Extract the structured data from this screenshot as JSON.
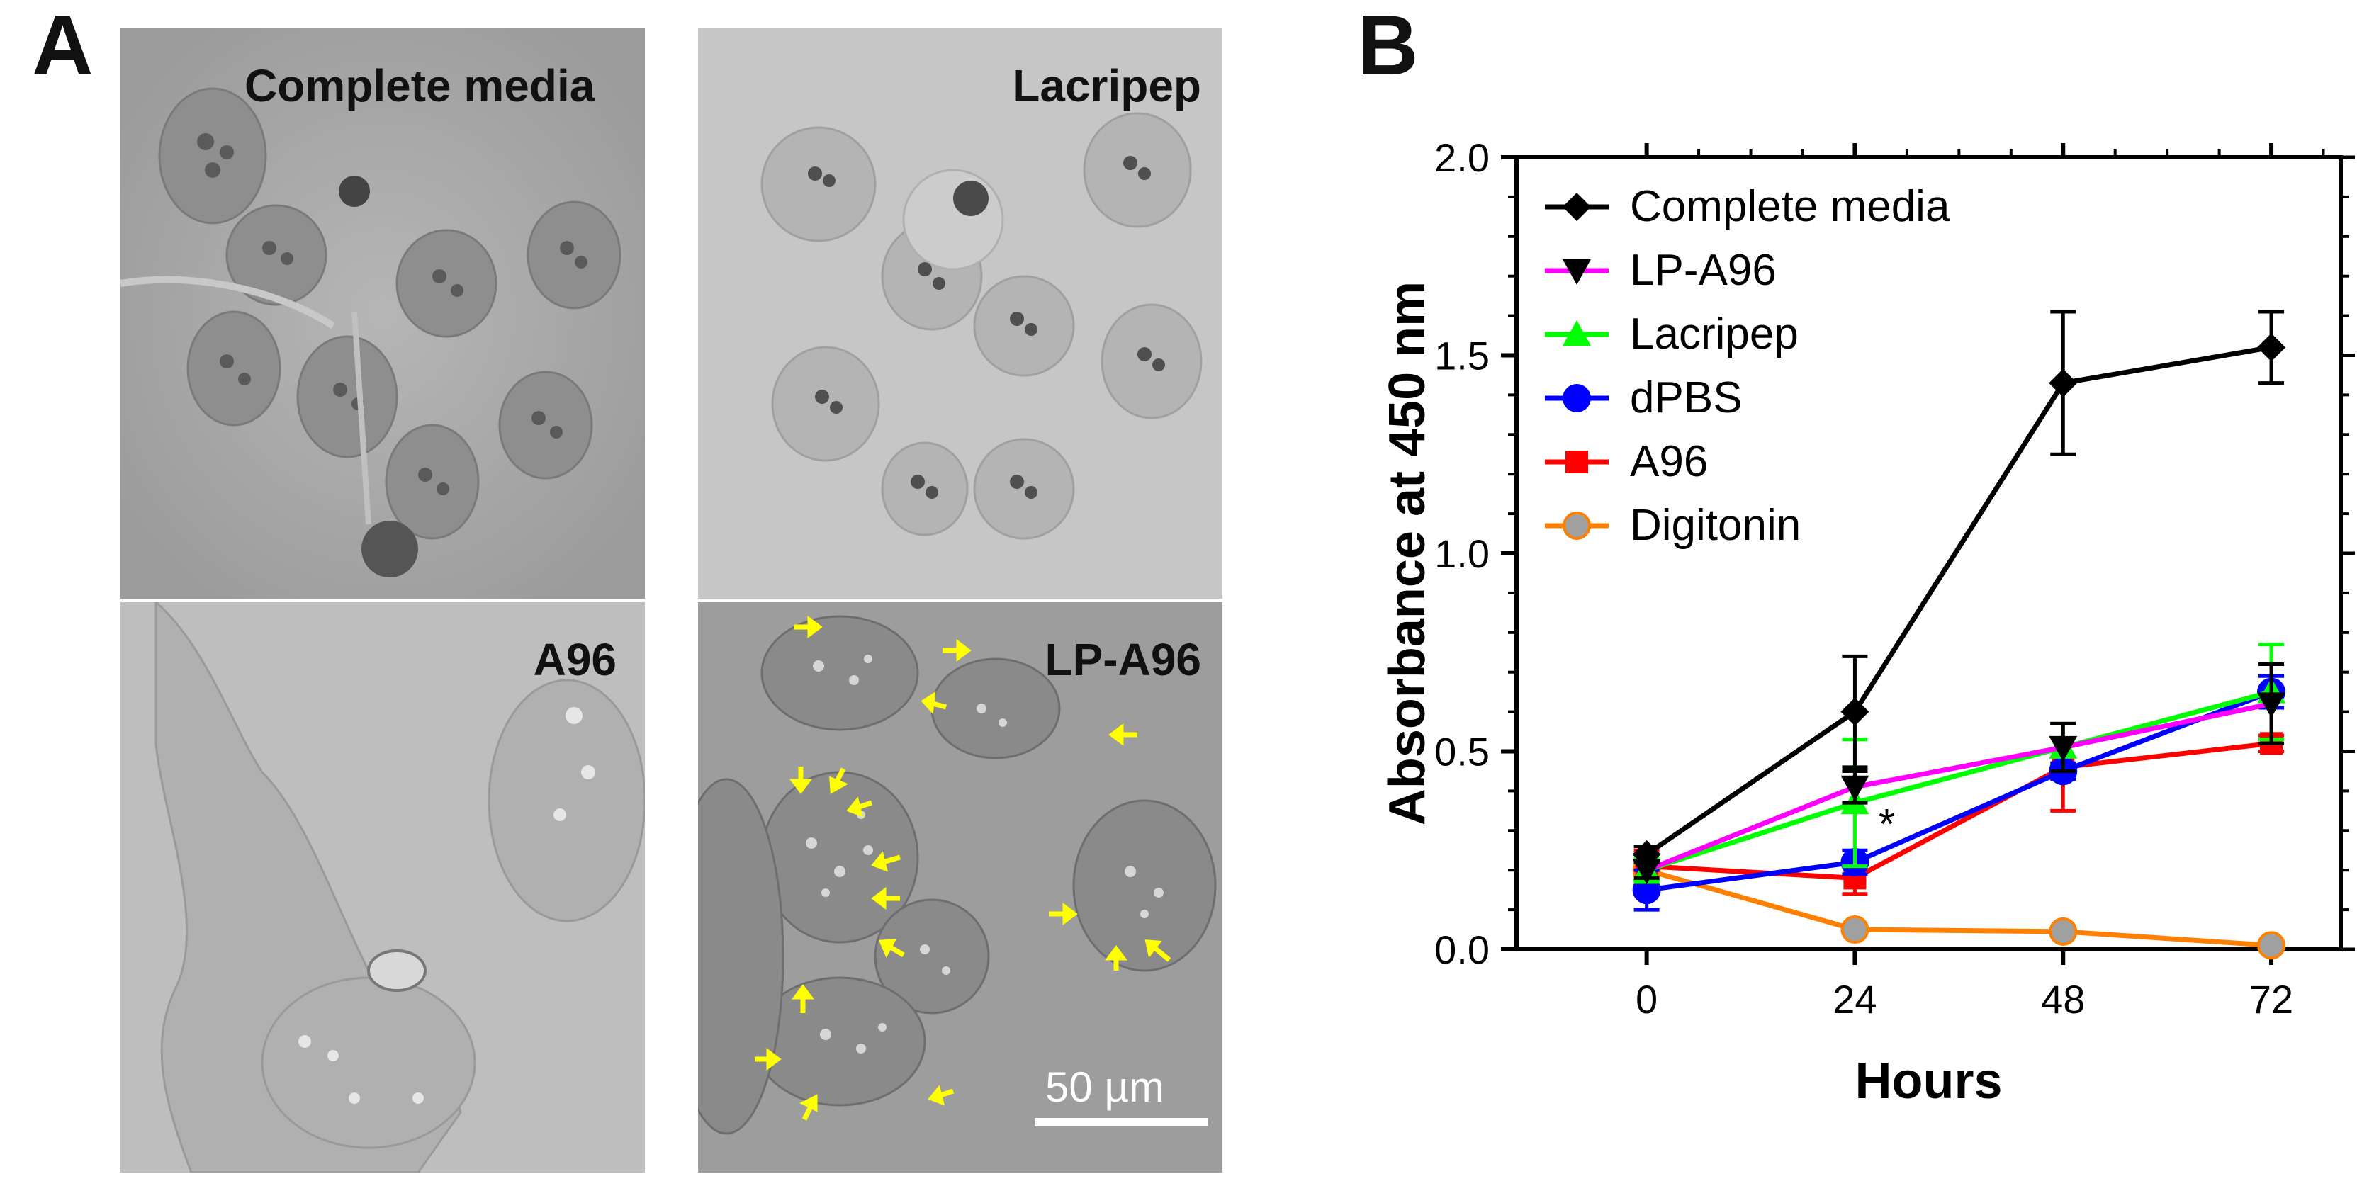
{
  "panel_a": {
    "letter": "A",
    "images": [
      {
        "label": "Complete media"
      },
      {
        "label": "Lacripep"
      },
      {
        "label": "A96"
      },
      {
        "label": "LP-A96"
      }
    ],
    "scale_bar": "50 µm",
    "arrow_color": "#ffff00"
  },
  "panel_b": {
    "letter": "B"
  },
  "chart_data": {
    "type": "line",
    "title": "",
    "xlabel": "Hours",
    "ylabel": "Absorbance at 450 nm",
    "x": [
      0,
      24,
      48,
      72
    ],
    "x_ticks": [
      "0",
      "24",
      "48",
      "72"
    ],
    "xlim": [
      -15,
      80
    ],
    "ylim": [
      0,
      2.0
    ],
    "y_ticks": [
      "0.0",
      "0.5",
      "1.0",
      "1.5",
      "2.0"
    ],
    "legend_position": "top-left",
    "annotation": "*",
    "series": [
      {
        "name": "Complete media",
        "color": "#000000",
        "marker": "diamond",
        "values": [
          0.24,
          0.6,
          1.43,
          1.52
        ],
        "errors": [
          0.02,
          0.14,
          0.18,
          0.09
        ]
      },
      {
        "name": "LP-A96",
        "color": "#ff00ff",
        "marker": "triangle-down",
        "values": [
          0.2,
          0.41,
          0.51,
          0.62
        ],
        "errors": [
          0.02,
          0.04,
          0.06,
          0.1
        ]
      },
      {
        "name": "Lacripep",
        "color": "#00ff00",
        "marker": "triangle-up",
        "values": [
          0.2,
          0.37,
          0.51,
          0.65
        ],
        "errors": [
          0.03,
          0.16,
          0.06,
          0.12
        ]
      },
      {
        "name": "dPBS",
        "color": "#0000ff",
        "marker": "circle",
        "values": [
          0.15,
          0.22,
          0.45,
          0.65
        ],
        "errors": [
          0.05,
          0.03,
          0.02,
          0.04
        ]
      },
      {
        "name": "A96",
        "color": "#ff0000",
        "marker": "square",
        "values": [
          0.21,
          0.18,
          0.46,
          0.52
        ],
        "errors": [
          0.04,
          0.04,
          0.11,
          0.02
        ]
      },
      {
        "name": "Digitonin",
        "color": "#ff8000",
        "marker": "circle-gray",
        "values": [
          0.2,
          0.05,
          0.045,
          0.01
        ],
        "errors": [
          0.02,
          0.01,
          0.01,
          0.005
        ]
      }
    ]
  }
}
